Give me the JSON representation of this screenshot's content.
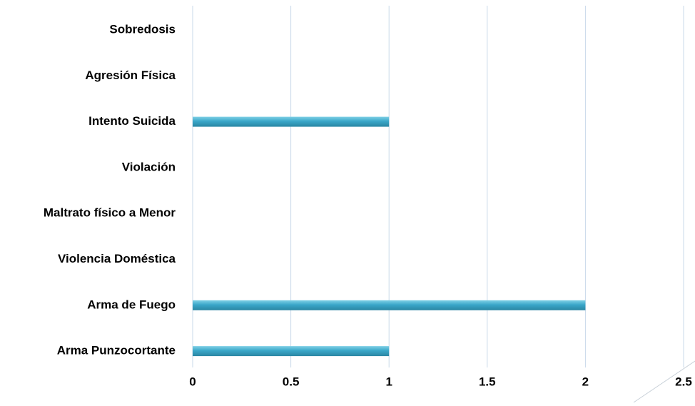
{
  "chart_data": {
    "type": "bar",
    "orientation": "horizontal",
    "categories": [
      "Sobredosis",
      "Agresión Física",
      "Intento Suicida",
      "Violación",
      "Maltrato físico a Menor",
      "Violencia Doméstica",
      "Arma de Fuego",
      "Arma Punzocortante"
    ],
    "series": [
      {
        "values": [
          0,
          0,
          1,
          0,
          0,
          0,
          2,
          1
        ]
      }
    ],
    "xlim": [
      0,
      2.5
    ],
    "x_ticks": [
      "0",
      "0.5",
      "1",
      "1.5",
      "2",
      "2.5"
    ],
    "grid": true,
    "legend": "none"
  },
  "colors": {
    "bar": "#3aa7c9",
    "bar_highlight": "#7fd0e6",
    "bar_shadow": "#2a86a3",
    "grid": "#c9d9ea",
    "text": "#000000"
  }
}
